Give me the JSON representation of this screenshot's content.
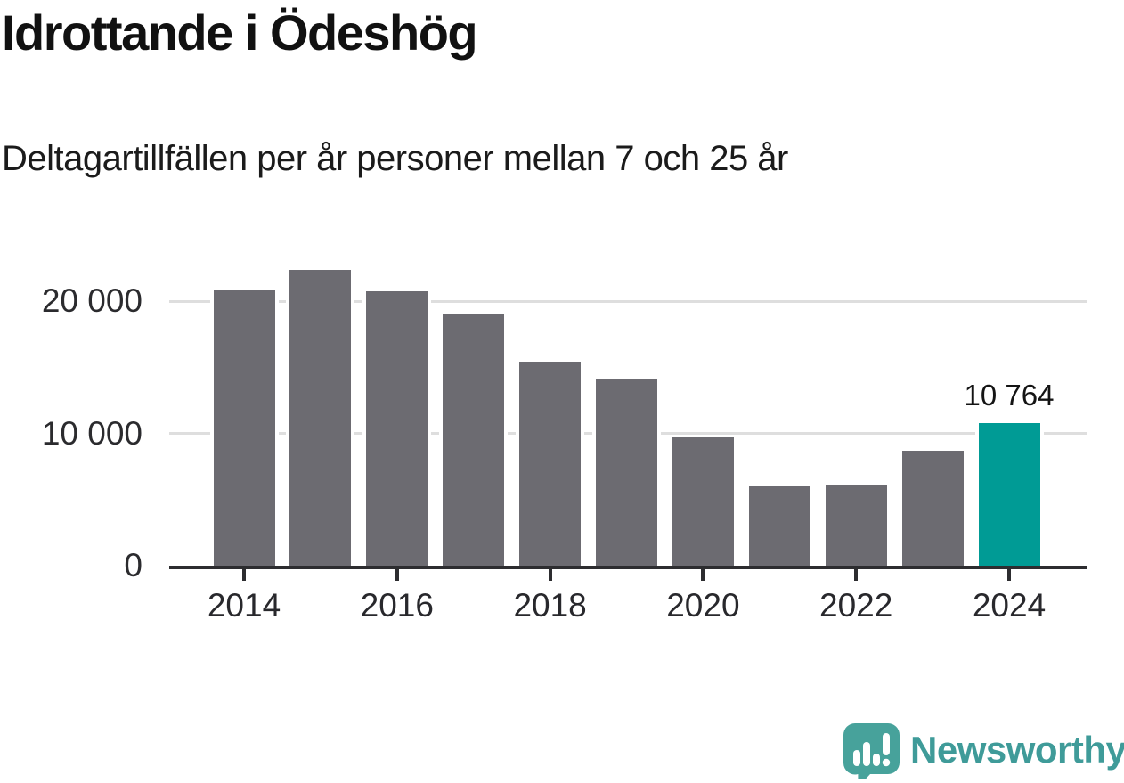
{
  "header": {
    "title": "Idrottande i Ödeshög",
    "subtitle": "Deltagartillfällen per år personer mellan 7 och 25 år"
  },
  "chart_data": {
    "type": "bar",
    "categories": [
      "2014",
      "2015",
      "2016",
      "2017",
      "2018",
      "2019",
      "2020",
      "2021",
      "2022",
      "2023",
      "2024"
    ],
    "values": [
      20800,
      22350,
      20750,
      19050,
      15400,
      14100,
      9700,
      6000,
      6050,
      8700,
      10764
    ],
    "title": "Idrottande i Ödeshög",
    "subtitle": "Deltagartillfällen per år personer mellan 7 och 25 år",
    "xlabel": "",
    "ylabel": "",
    "ylim": [
      0,
      23000
    ],
    "yticks": [
      0,
      10000,
      20000
    ],
    "ytick_labels": [
      "0",
      "10 000",
      "20 000"
    ],
    "xtick_years": [
      "2014",
      "2016",
      "2018",
      "2020",
      "2022",
      "2024"
    ],
    "xtick_labels": [
      "2014",
      "2016",
      "2018",
      "2020",
      "2022",
      "2024"
    ],
    "grid": "horizontal",
    "legend": "none",
    "highlight_index": 10,
    "highlight_value_label": "10 764",
    "bar_color": "#6c6b71",
    "highlight_color": "#009b95",
    "axis_color": "#2d2d30",
    "gridline_color": "#dedede"
  },
  "footer": {
    "brand_name": "Newsworthy",
    "logo_icon": "newsworthy-speech-bubble-chart-icon",
    "brand_color": "#3f9b99",
    "logo_bubble_color": "#47a29b"
  }
}
